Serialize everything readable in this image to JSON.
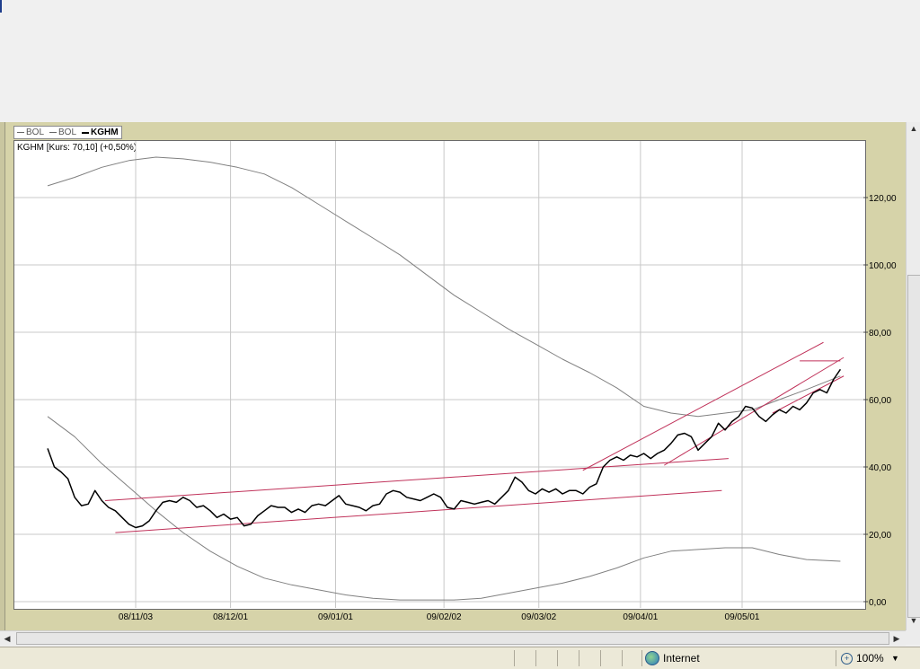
{
  "legend": {
    "items": [
      {
        "label": "BOL",
        "style": "thin-gray"
      },
      {
        "label": "BOL",
        "style": "thin-gray"
      },
      {
        "label": "KGHM",
        "style": "bold-black"
      }
    ]
  },
  "caption": "KGHM [Kurs: 70,10] (+0,50%)",
  "status": {
    "zone": "Internet",
    "zoom": "100%"
  },
  "chart_data": {
    "type": "line",
    "title": "KGHM [Kurs: 70,10] (+0,50%)",
    "x_tick_labels": [
      "08/11/03",
      "08/12/01",
      "09/01/01",
      "09/02/02",
      "09/03/02",
      "09/04/01",
      "09/05/01"
    ],
    "x_tick_dates": [
      "2008-11-03",
      "2008-12-01",
      "2009-01-01",
      "2009-02-02",
      "2009-03-02",
      "2009-04-01",
      "2009-05-01"
    ],
    "xlim": [
      "2008-10-06",
      "2009-05-31"
    ],
    "y_tick_labels": [
      "0,00",
      "20,00",
      "40,00",
      "60,00",
      "80,00",
      "100,00",
      "120,00"
    ],
    "ylim": [
      -1,
      135
    ],
    "y_axis_position": "right",
    "grid": true,
    "series": [
      {
        "name": "KGHM",
        "color": "#000000",
        "points": [
          [
            "2008-10-08",
            45.5
          ],
          [
            "2008-10-10",
            40
          ],
          [
            "2008-10-12",
            38.5
          ],
          [
            "2008-10-14",
            36.5
          ],
          [
            "2008-10-16",
            31
          ],
          [
            "2008-10-18",
            28.5
          ],
          [
            "2008-10-20",
            29
          ],
          [
            "2008-10-22",
            33
          ],
          [
            "2008-10-24",
            30
          ],
          [
            "2008-10-26",
            28
          ],
          [
            "2008-10-28",
            27
          ],
          [
            "2008-10-30",
            25
          ],
          [
            "2008-11-01",
            23
          ],
          [
            "2008-11-03",
            22
          ],
          [
            "2008-11-05",
            22.5
          ],
          [
            "2008-11-07",
            24
          ],
          [
            "2008-11-09",
            27
          ],
          [
            "2008-11-11",
            29.5
          ],
          [
            "2008-11-13",
            30
          ],
          [
            "2008-11-15",
            29.5
          ],
          [
            "2008-11-17",
            31
          ],
          [
            "2008-11-19",
            30
          ],
          [
            "2008-11-21",
            28
          ],
          [
            "2008-11-23",
            28.5
          ],
          [
            "2008-11-25",
            27
          ],
          [
            "2008-11-27",
            25
          ],
          [
            "2008-11-29",
            26
          ],
          [
            "2008-12-01",
            24.5
          ],
          [
            "2008-12-03",
            25
          ],
          [
            "2008-12-05",
            22.5
          ],
          [
            "2008-12-07",
            23
          ],
          [
            "2008-12-09",
            25.5
          ],
          [
            "2008-12-11",
            27
          ],
          [
            "2008-12-13",
            28.5
          ],
          [
            "2008-12-15",
            28
          ],
          [
            "2008-12-17",
            28
          ],
          [
            "2008-12-19",
            26.5
          ],
          [
            "2008-12-21",
            27.5
          ],
          [
            "2008-12-23",
            26.5
          ],
          [
            "2008-12-25",
            28.5
          ],
          [
            "2008-12-27",
            29
          ],
          [
            "2008-12-29",
            28.5
          ],
          [
            "2008-12-31",
            30
          ],
          [
            "2009-01-02",
            31.5
          ],
          [
            "2009-01-04",
            29
          ],
          [
            "2009-01-06",
            28.5
          ],
          [
            "2009-01-08",
            28
          ],
          [
            "2009-01-10",
            27
          ],
          [
            "2009-01-12",
            28.5
          ],
          [
            "2009-01-14",
            29
          ],
          [
            "2009-01-16",
            32
          ],
          [
            "2009-01-18",
            33
          ],
          [
            "2009-01-20",
            32.5
          ],
          [
            "2009-01-22",
            31
          ],
          [
            "2009-01-24",
            30.5
          ],
          [
            "2009-01-26",
            30
          ],
          [
            "2009-01-28",
            31
          ],
          [
            "2009-01-30",
            32
          ],
          [
            "2009-02-01",
            31
          ],
          [
            "2009-02-03",
            28
          ],
          [
            "2009-02-05",
            27.5
          ],
          [
            "2009-02-07",
            30
          ],
          [
            "2009-02-09",
            29.5
          ],
          [
            "2009-02-11",
            29
          ],
          [
            "2009-02-13",
            29.5
          ],
          [
            "2009-02-15",
            30
          ],
          [
            "2009-02-17",
            29
          ],
          [
            "2009-02-19",
            31
          ],
          [
            "2009-02-21",
            33
          ],
          [
            "2009-02-23",
            37
          ],
          [
            "2009-02-25",
            35.5
          ],
          [
            "2009-02-27",
            33
          ],
          [
            "2009-03-01",
            32
          ],
          [
            "2009-03-03",
            33.5
          ],
          [
            "2009-03-05",
            32.5
          ],
          [
            "2009-03-07",
            33.5
          ],
          [
            "2009-03-09",
            32
          ],
          [
            "2009-03-11",
            33
          ],
          [
            "2009-03-13",
            33
          ],
          [
            "2009-03-15",
            32
          ],
          [
            "2009-03-17",
            34
          ],
          [
            "2009-03-19",
            35
          ],
          [
            "2009-03-21",
            40
          ],
          [
            "2009-03-23",
            42
          ],
          [
            "2009-03-25",
            43
          ],
          [
            "2009-03-27",
            42
          ],
          [
            "2009-03-29",
            43.5
          ],
          [
            "2009-03-31",
            43
          ],
          [
            "2009-04-02",
            44
          ],
          [
            "2009-04-04",
            42.5
          ],
          [
            "2009-04-06",
            44
          ],
          [
            "2009-04-08",
            45
          ],
          [
            "2009-04-10",
            47
          ],
          [
            "2009-04-12",
            49.5
          ],
          [
            "2009-04-14",
            50
          ],
          [
            "2009-04-16",
            49
          ],
          [
            "2009-04-18",
            45
          ],
          [
            "2009-04-20",
            47
          ],
          [
            "2009-04-22",
            49
          ],
          [
            "2009-04-24",
            53
          ],
          [
            "2009-04-26",
            51
          ],
          [
            "2009-04-28",
            53.5
          ],
          [
            "2009-04-30",
            55
          ],
          [
            "2009-05-02",
            58
          ],
          [
            "2009-05-04",
            57.5
          ],
          [
            "2009-05-06",
            55
          ],
          [
            "2009-05-08",
            53.5
          ],
          [
            "2009-05-10",
            55.5
          ],
          [
            "2009-05-12",
            57
          ],
          [
            "2009-05-14",
            56
          ],
          [
            "2009-05-16",
            58
          ],
          [
            "2009-05-18",
            57
          ],
          [
            "2009-05-20",
            59
          ],
          [
            "2009-05-22",
            62
          ],
          [
            "2009-05-24",
            63
          ],
          [
            "2009-05-26",
            62
          ],
          [
            "2009-05-28",
            66
          ],
          [
            "2009-05-30",
            69
          ]
        ]
      },
      {
        "name": "BOL",
        "color": "#808080",
        "points": [
          [
            "2008-10-08",
            123.5
          ],
          [
            "2008-10-16",
            126
          ],
          [
            "2008-10-24",
            129
          ],
          [
            "2008-11-01",
            131
          ],
          [
            "2008-11-09",
            132
          ],
          [
            "2008-11-17",
            131.5
          ],
          [
            "2008-11-25",
            130.5
          ],
          [
            "2008-12-03",
            129
          ],
          [
            "2008-12-11",
            127
          ],
          [
            "2008-12-19",
            123
          ],
          [
            "2008-12-27",
            118
          ],
          [
            "2009-01-04",
            113
          ],
          [
            "2009-01-12",
            108
          ],
          [
            "2009-01-20",
            103
          ],
          [
            "2009-01-28",
            97
          ],
          [
            "2009-02-05",
            91
          ],
          [
            "2009-02-13",
            86
          ],
          [
            "2009-02-21",
            81
          ],
          [
            "2009-03-01",
            76.5
          ],
          [
            "2009-03-09",
            72
          ],
          [
            "2009-03-17",
            68
          ],
          [
            "2009-03-25",
            63.5
          ],
          [
            "2009-04-02",
            58
          ],
          [
            "2009-04-10",
            56
          ],
          [
            "2009-04-18",
            55
          ],
          [
            "2009-04-26",
            56
          ],
          [
            "2009-05-04",
            57
          ],
          [
            "2009-05-12",
            60
          ],
          [
            "2009-05-20",
            63
          ],
          [
            "2009-05-30",
            67
          ]
        ]
      },
      {
        "name": "BOL",
        "color": "#808080",
        "points": [
          [
            "2008-10-08",
            55
          ],
          [
            "2008-10-16",
            49
          ],
          [
            "2008-10-24",
            41
          ],
          [
            "2008-11-01",
            34
          ],
          [
            "2008-11-09",
            27
          ],
          [
            "2008-11-17",
            20.5
          ],
          [
            "2008-11-25",
            15
          ],
          [
            "2008-12-03",
            10.5
          ],
          [
            "2008-12-11",
            7
          ],
          [
            "2008-12-19",
            5
          ],
          [
            "2008-12-27",
            3.5
          ],
          [
            "2009-01-04",
            2
          ],
          [
            "2009-01-12",
            1
          ],
          [
            "2009-01-20",
            0.5
          ],
          [
            "2009-01-28",
            0.5
          ],
          [
            "2009-02-05",
            0.5
          ],
          [
            "2009-02-13",
            1
          ],
          [
            "2009-02-21",
            2.5
          ],
          [
            "2009-03-01",
            4
          ],
          [
            "2009-03-09",
            5.5
          ],
          [
            "2009-03-17",
            7.5
          ],
          [
            "2009-03-25",
            10
          ],
          [
            "2009-04-02",
            13
          ],
          [
            "2009-04-10",
            15
          ],
          [
            "2009-04-18",
            15.5
          ],
          [
            "2009-04-26",
            16
          ],
          [
            "2009-05-04",
            16
          ],
          [
            "2009-05-12",
            14
          ],
          [
            "2009-05-20",
            12.5
          ],
          [
            "2009-05-30",
            12
          ]
        ]
      }
    ],
    "trendlines": [
      {
        "color": "#c0325a",
        "from": [
          "2008-10-25",
          30
        ],
        "to": [
          "2009-04-27",
          42.5
        ]
      },
      {
        "color": "#c0325a",
        "from": [
          "2008-10-28",
          20.5
        ],
        "to": [
          "2009-04-25",
          33
        ]
      },
      {
        "color": "#c0325a",
        "from": [
          "2009-03-15",
          39
        ],
        "to": [
          "2009-05-25",
          77
        ]
      },
      {
        "color": "#c0325a",
        "from": [
          "2009-04-08",
          40.5
        ],
        "to": [
          "2009-05-31",
          72.5
        ]
      },
      {
        "color": "#c0325a",
        "from": [
          "2009-05-10",
          56
        ],
        "to": [
          "2009-05-31",
          67
        ]
      },
      {
        "color": "#c0325a",
        "from": [
          "2009-05-18",
          71.5
        ],
        "to": [
          "2009-05-30",
          71.5
        ]
      }
    ]
  }
}
